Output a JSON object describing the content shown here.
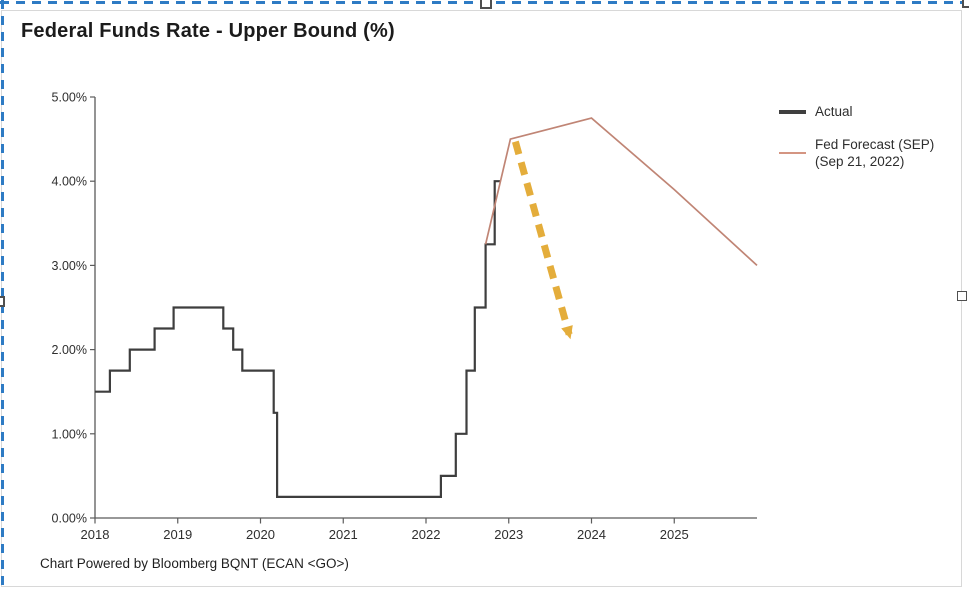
{
  "page": {
    "title": "Federal Funds Rate - Upper Bound (%)",
    "footer": "Chart Powered by Bloomberg BQNT (ECAN <GO>)"
  },
  "legend": {
    "items": [
      {
        "label": "Actual",
        "color": "#3f3f3f"
      },
      {
        "label_line1": "Fed Forecast (SEP)",
        "label_line2": "(Sep 21, 2022)",
        "color": "#d49582"
      }
    ]
  },
  "colors": {
    "actual_line": "#3e3e3e",
    "forecast_line": "#c08575",
    "arrow": "#e2a72b",
    "selection_border": "#2e7bc4",
    "axis": "#5b5b5b",
    "card_border": "#d8d8d8"
  },
  "chart_data": {
    "type": "line",
    "title": "Federal Funds Rate - Upper Bound (%)",
    "xlabel": "",
    "ylabel": "",
    "xlim": [
      2018,
      2026
    ],
    "ylim": [
      0,
      5
    ],
    "grid": false,
    "legend_position": "right",
    "x_ticks": [
      {
        "value": 2018,
        "label": "2018"
      },
      {
        "value": 2019,
        "label": "2019"
      },
      {
        "value": 2020,
        "label": "2020"
      },
      {
        "value": 2021,
        "label": "2021"
      },
      {
        "value": 2022,
        "label": "2022"
      },
      {
        "value": 2023,
        "label": "2023"
      },
      {
        "value": 2024,
        "label": "2024"
      },
      {
        "value": 2025,
        "label": "2025"
      }
    ],
    "y_ticks": [
      {
        "value": 0,
        "label": "0.00%"
      },
      {
        "value": 1,
        "label": "1.00%"
      },
      {
        "value": 2,
        "label": "2.00%"
      },
      {
        "value": 3,
        "label": "3.00%"
      },
      {
        "value": 4,
        "label": "4.00%"
      },
      {
        "value": 5,
        "label": "5.00%"
      }
    ],
    "series": [
      {
        "name": "Actual",
        "type": "step-after",
        "color": "#3e3e3e",
        "width": 2.2,
        "points": [
          [
            2018.0,
            1.5
          ],
          [
            2018.18,
            1.75
          ],
          [
            2018.42,
            2.0
          ],
          [
            2018.72,
            2.25
          ],
          [
            2018.95,
            2.5
          ],
          [
            2019.55,
            2.25
          ],
          [
            2019.67,
            2.0
          ],
          [
            2019.78,
            1.75
          ],
          [
            2020.16,
            1.25
          ],
          [
            2020.2,
            0.25
          ],
          [
            2022.18,
            0.5
          ],
          [
            2022.36,
            1.0
          ],
          [
            2022.49,
            1.75
          ],
          [
            2022.59,
            2.5
          ],
          [
            2022.72,
            3.25
          ],
          [
            2022.83,
            4.0
          ],
          [
            2022.9,
            4.0
          ]
        ]
      },
      {
        "name": "Fed Forecast (SEP) (Sep 21, 2022)",
        "type": "line",
        "color": "#c08575",
        "width": 1.7,
        "points": [
          [
            2022.72,
            3.25
          ],
          [
            2023.02,
            4.5
          ],
          [
            2024.0,
            4.75
          ],
          [
            2025.0,
            3.9
          ],
          [
            2026.0,
            3.0
          ]
        ]
      }
    ],
    "annotations": [
      {
        "type": "arrow",
        "style": "dashed",
        "color": "#e2a72b",
        "from": [
          2023.08,
          4.47
        ],
        "to": [
          2023.73,
          2.18
        ]
      }
    ]
  }
}
